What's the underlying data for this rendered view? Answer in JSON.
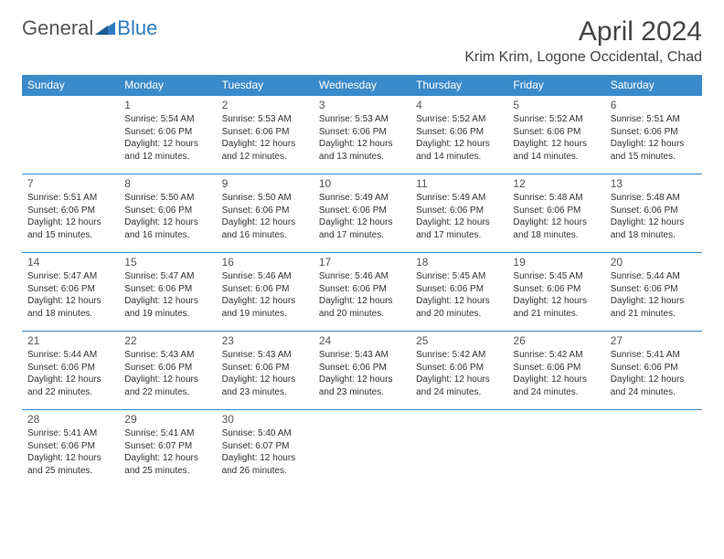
{
  "brand": {
    "part1": "General",
    "part2": "Blue"
  },
  "title": "April 2024",
  "location": "Krim Krim, Logone Occidental, Chad",
  "colors": {
    "header_bg": "#3b8bca",
    "header_text": "#ffffff",
    "cell_border": "#3b8bca",
    "brand_gray": "#555555",
    "brand_blue": "#2f7bbf",
    "body_text": "#333333",
    "background": "#ffffff"
  },
  "typography": {
    "month_title_size": 30,
    "location_size": 16,
    "dayhead_size": 12,
    "daynum_size": 12,
    "cell_text_size": 10
  },
  "day_headers": [
    "Sunday",
    "Monday",
    "Tuesday",
    "Wednesday",
    "Thursday",
    "Friday",
    "Saturday"
  ],
  "weeks": [
    [
      null,
      {
        "n": "1",
        "sr": "Sunrise: 5:54 AM",
        "ss": "Sunset: 6:06 PM",
        "d1": "Daylight: 12 hours",
        "d2": "and 12 minutes."
      },
      {
        "n": "2",
        "sr": "Sunrise: 5:53 AM",
        "ss": "Sunset: 6:06 PM",
        "d1": "Daylight: 12 hours",
        "d2": "and 12 minutes."
      },
      {
        "n": "3",
        "sr": "Sunrise: 5:53 AM",
        "ss": "Sunset: 6:06 PM",
        "d1": "Daylight: 12 hours",
        "d2": "and 13 minutes."
      },
      {
        "n": "4",
        "sr": "Sunrise: 5:52 AM",
        "ss": "Sunset: 6:06 PM",
        "d1": "Daylight: 12 hours",
        "d2": "and 14 minutes."
      },
      {
        "n": "5",
        "sr": "Sunrise: 5:52 AM",
        "ss": "Sunset: 6:06 PM",
        "d1": "Daylight: 12 hours",
        "d2": "and 14 minutes."
      },
      {
        "n": "6",
        "sr": "Sunrise: 5:51 AM",
        "ss": "Sunset: 6:06 PM",
        "d1": "Daylight: 12 hours",
        "d2": "and 15 minutes."
      }
    ],
    [
      {
        "n": "7",
        "sr": "Sunrise: 5:51 AM",
        "ss": "Sunset: 6:06 PM",
        "d1": "Daylight: 12 hours",
        "d2": "and 15 minutes."
      },
      {
        "n": "8",
        "sr": "Sunrise: 5:50 AM",
        "ss": "Sunset: 6:06 PM",
        "d1": "Daylight: 12 hours",
        "d2": "and 16 minutes."
      },
      {
        "n": "9",
        "sr": "Sunrise: 5:50 AM",
        "ss": "Sunset: 6:06 PM",
        "d1": "Daylight: 12 hours",
        "d2": "and 16 minutes."
      },
      {
        "n": "10",
        "sr": "Sunrise: 5:49 AM",
        "ss": "Sunset: 6:06 PM",
        "d1": "Daylight: 12 hours",
        "d2": "and 17 minutes."
      },
      {
        "n": "11",
        "sr": "Sunrise: 5:49 AM",
        "ss": "Sunset: 6:06 PM",
        "d1": "Daylight: 12 hours",
        "d2": "and 17 minutes."
      },
      {
        "n": "12",
        "sr": "Sunrise: 5:48 AM",
        "ss": "Sunset: 6:06 PM",
        "d1": "Daylight: 12 hours",
        "d2": "and 18 minutes."
      },
      {
        "n": "13",
        "sr": "Sunrise: 5:48 AM",
        "ss": "Sunset: 6:06 PM",
        "d1": "Daylight: 12 hours",
        "d2": "and 18 minutes."
      }
    ],
    [
      {
        "n": "14",
        "sr": "Sunrise: 5:47 AM",
        "ss": "Sunset: 6:06 PM",
        "d1": "Daylight: 12 hours",
        "d2": "and 18 minutes."
      },
      {
        "n": "15",
        "sr": "Sunrise: 5:47 AM",
        "ss": "Sunset: 6:06 PM",
        "d1": "Daylight: 12 hours",
        "d2": "and 19 minutes."
      },
      {
        "n": "16",
        "sr": "Sunrise: 5:46 AM",
        "ss": "Sunset: 6:06 PM",
        "d1": "Daylight: 12 hours",
        "d2": "and 19 minutes."
      },
      {
        "n": "17",
        "sr": "Sunrise: 5:46 AM",
        "ss": "Sunset: 6:06 PM",
        "d1": "Daylight: 12 hours",
        "d2": "and 20 minutes."
      },
      {
        "n": "18",
        "sr": "Sunrise: 5:45 AM",
        "ss": "Sunset: 6:06 PM",
        "d1": "Daylight: 12 hours",
        "d2": "and 20 minutes."
      },
      {
        "n": "19",
        "sr": "Sunrise: 5:45 AM",
        "ss": "Sunset: 6:06 PM",
        "d1": "Daylight: 12 hours",
        "d2": "and 21 minutes."
      },
      {
        "n": "20",
        "sr": "Sunrise: 5:44 AM",
        "ss": "Sunset: 6:06 PM",
        "d1": "Daylight: 12 hours",
        "d2": "and 21 minutes."
      }
    ],
    [
      {
        "n": "21",
        "sr": "Sunrise: 5:44 AM",
        "ss": "Sunset: 6:06 PM",
        "d1": "Daylight: 12 hours",
        "d2": "and 22 minutes."
      },
      {
        "n": "22",
        "sr": "Sunrise: 5:43 AM",
        "ss": "Sunset: 6:06 PM",
        "d1": "Daylight: 12 hours",
        "d2": "and 22 minutes."
      },
      {
        "n": "23",
        "sr": "Sunrise: 5:43 AM",
        "ss": "Sunset: 6:06 PM",
        "d1": "Daylight: 12 hours",
        "d2": "and 23 minutes."
      },
      {
        "n": "24",
        "sr": "Sunrise: 5:43 AM",
        "ss": "Sunset: 6:06 PM",
        "d1": "Daylight: 12 hours",
        "d2": "and 23 minutes."
      },
      {
        "n": "25",
        "sr": "Sunrise: 5:42 AM",
        "ss": "Sunset: 6:06 PM",
        "d1": "Daylight: 12 hours",
        "d2": "and 24 minutes."
      },
      {
        "n": "26",
        "sr": "Sunrise: 5:42 AM",
        "ss": "Sunset: 6:06 PM",
        "d1": "Daylight: 12 hours",
        "d2": "and 24 minutes."
      },
      {
        "n": "27",
        "sr": "Sunrise: 5:41 AM",
        "ss": "Sunset: 6:06 PM",
        "d1": "Daylight: 12 hours",
        "d2": "and 24 minutes."
      }
    ],
    [
      {
        "n": "28",
        "sr": "Sunrise: 5:41 AM",
        "ss": "Sunset: 6:06 PM",
        "d1": "Daylight: 12 hours",
        "d2": "and 25 minutes."
      },
      {
        "n": "29",
        "sr": "Sunrise: 5:41 AM",
        "ss": "Sunset: 6:07 PM",
        "d1": "Daylight: 12 hours",
        "d2": "and 25 minutes."
      },
      {
        "n": "30",
        "sr": "Sunrise: 5:40 AM",
        "ss": "Sunset: 6:07 PM",
        "d1": "Daylight: 12 hours",
        "d2": "and 26 minutes."
      },
      null,
      null,
      null,
      null
    ]
  ]
}
